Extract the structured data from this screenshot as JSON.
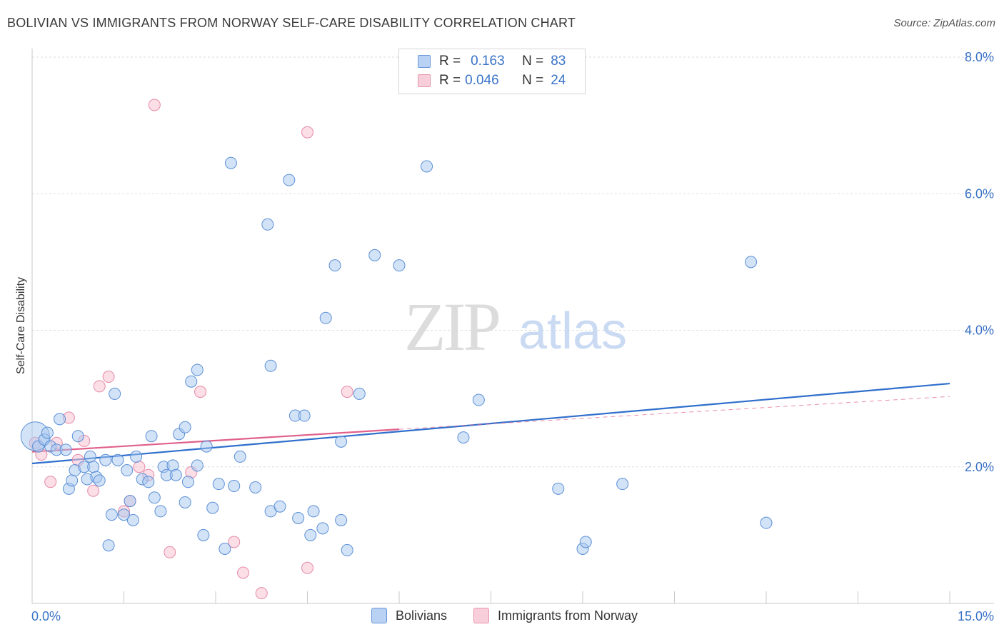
{
  "header": {
    "title": "BOLIVIAN VS IMMIGRANTS FROM NORWAY SELF-CARE DISABILITY CORRELATION CHART",
    "source": "Source: ZipAtlas.com"
  },
  "watermark": {
    "zip": "ZIP",
    "atlas": "atlas"
  },
  "legend": {
    "rows": [
      {
        "r_label": "R =",
        "r_value": "0.163",
        "n_label": "N =",
        "n_value": "83"
      },
      {
        "r_label": "R =",
        "r_value": "0.046",
        "n_label": "N =",
        "n_value": "24"
      }
    ]
  },
  "bottom_legend": {
    "bolivians": "Bolivians",
    "norway": "Immigrants from Norway"
  },
  "colors": {
    "blue_fill": "#a8c8f0",
    "blue_stroke": "#5b8fd6",
    "blue_line": "#2f6fcc",
    "pink_fill": "#f7c2d2",
    "pink_stroke": "#e68aa8",
    "pink_line": "#e0608a",
    "axis_text": "#3a73c7"
  },
  "chart_data": {
    "type": "scatter",
    "title": "BOLIVIAN VS IMMIGRANTS FROM NORWAY SELF-CARE DISABILITY CORRELATION CHART",
    "xlabel": "",
    "ylabel": "Self-Care Disability",
    "xlim": [
      0,
      15
    ],
    "ylim": [
      0,
      8.0
    ],
    "x_tick_labels": [
      "0.0%",
      "15.0%"
    ],
    "y_ticks": [
      2,
      4,
      6,
      8
    ],
    "y_tick_labels": [
      "2.0%",
      "4.0%",
      "6.0%",
      "8.0%"
    ],
    "grid": true,
    "series": [
      {
        "name": "Bolivians",
        "r": 0.163,
        "n": 83,
        "trend": {
          "x": [
            0,
            15
          ],
          "y": [
            2.05,
            3.22
          ]
        },
        "points": [
          {
            "x": 0.05,
            "y": 2.45,
            "big": true
          },
          {
            "x": 0.1,
            "y": 2.3
          },
          {
            "x": 0.2,
            "y": 2.4
          },
          {
            "x": 0.25,
            "y": 2.5
          },
          {
            "x": 0.3,
            "y": 2.3
          },
          {
            "x": 0.4,
            "y": 2.25
          },
          {
            "x": 0.45,
            "y": 2.7
          },
          {
            "x": 0.55,
            "y": 2.25
          },
          {
            "x": 0.6,
            "y": 1.68
          },
          {
            "x": 0.65,
            "y": 1.8
          },
          {
            "x": 0.7,
            "y": 1.95
          },
          {
            "x": 0.75,
            "y": 2.45
          },
          {
            "x": 0.85,
            "y": 2.0
          },
          {
            "x": 0.9,
            "y": 1.82
          },
          {
            "x": 0.95,
            "y": 2.15
          },
          {
            "x": 1.0,
            "y": 2.0
          },
          {
            "x": 1.05,
            "y": 1.85
          },
          {
            "x": 1.1,
            "y": 1.8
          },
          {
            "x": 1.2,
            "y": 2.1
          },
          {
            "x": 1.25,
            "y": 0.85
          },
          {
            "x": 1.3,
            "y": 1.3
          },
          {
            "x": 1.35,
            "y": 3.07
          },
          {
            "x": 1.4,
            "y": 2.1
          },
          {
            "x": 1.5,
            "y": 1.3
          },
          {
            "x": 1.55,
            "y": 1.95
          },
          {
            "x": 1.6,
            "y": 1.5
          },
          {
            "x": 1.65,
            "y": 1.22
          },
          {
            "x": 1.7,
            "y": 2.15
          },
          {
            "x": 1.8,
            "y": 1.82
          },
          {
            "x": 1.9,
            "y": 1.78
          },
          {
            "x": 1.95,
            "y": 2.45
          },
          {
            "x": 2.0,
            "y": 1.55
          },
          {
            "x": 2.1,
            "y": 1.35
          },
          {
            "x": 2.15,
            "y": 2.0
          },
          {
            "x": 2.2,
            "y": 1.88
          },
          {
            "x": 2.3,
            "y": 2.02
          },
          {
            "x": 2.35,
            "y": 1.88
          },
          {
            "x": 2.4,
            "y": 2.48
          },
          {
            "x": 2.5,
            "y": 1.48
          },
          {
            "x": 2.5,
            "y": 2.58
          },
          {
            "x": 2.55,
            "y": 1.78
          },
          {
            "x": 2.6,
            "y": 3.25
          },
          {
            "x": 2.7,
            "y": 3.42
          },
          {
            "x": 2.7,
            "y": 2.02
          },
          {
            "x": 2.8,
            "y": 1.0
          },
          {
            "x": 2.85,
            "y": 2.3
          },
          {
            "x": 2.95,
            "y": 1.4
          },
          {
            "x": 3.05,
            "y": 1.75
          },
          {
            "x": 3.15,
            "y": 0.8
          },
          {
            "x": 3.25,
            "y": 6.45
          },
          {
            "x": 3.3,
            "y": 1.72
          },
          {
            "x": 3.4,
            "y": 2.15
          },
          {
            "x": 3.65,
            "y": 1.7
          },
          {
            "x": 3.85,
            "y": 5.55
          },
          {
            "x": 3.9,
            "y": 3.48
          },
          {
            "x": 3.9,
            "y": 1.35
          },
          {
            "x": 4.05,
            "y": 1.42
          },
          {
            "x": 4.2,
            "y": 6.2
          },
          {
            "x": 4.3,
            "y": 2.75
          },
          {
            "x": 4.35,
            "y": 1.25
          },
          {
            "x": 4.45,
            "y": 2.75
          },
          {
            "x": 4.55,
            "y": 1.0
          },
          {
            "x": 4.6,
            "y": 1.35
          },
          {
            "x": 4.75,
            "y": 1.1
          },
          {
            "x": 4.8,
            "y": 4.18
          },
          {
            "x": 4.95,
            "y": 4.95
          },
          {
            "x": 5.05,
            "y": 2.37
          },
          {
            "x": 5.05,
            "y": 1.22
          },
          {
            "x": 5.15,
            "y": 0.78
          },
          {
            "x": 5.35,
            "y": 3.07
          },
          {
            "x": 5.6,
            "y": 5.1
          },
          {
            "x": 6.0,
            "y": 4.95
          },
          {
            "x": 6.45,
            "y": 6.4
          },
          {
            "x": 7.05,
            "y": 2.43
          },
          {
            "x": 7.3,
            "y": 2.98
          },
          {
            "x": 8.6,
            "y": 1.68
          },
          {
            "x": 9.0,
            "y": 0.8
          },
          {
            "x": 9.05,
            "y": 0.9
          },
          {
            "x": 9.65,
            "y": 1.75
          },
          {
            "x": 11.75,
            "y": 5.0
          },
          {
            "x": 12.0,
            "y": 1.18
          }
        ]
      },
      {
        "name": "Immigrants from Norway",
        "r": 0.046,
        "n": 24,
        "trend": {
          "x": [
            0,
            6.0
          ],
          "y": [
            2.22,
            2.55
          ]
        },
        "trend_dashed": {
          "x": [
            6.0,
            15
          ],
          "y": [
            2.55,
            3.03
          ]
        },
        "points": [
          {
            "x": 0.05,
            "y": 2.35
          },
          {
            "x": 0.15,
            "y": 2.18
          },
          {
            "x": 0.3,
            "y": 1.78
          },
          {
            "x": 0.4,
            "y": 2.35
          },
          {
            "x": 0.6,
            "y": 2.72
          },
          {
            "x": 0.75,
            "y": 2.1
          },
          {
            "x": 0.85,
            "y": 2.38
          },
          {
            "x": 1.0,
            "y": 1.65
          },
          {
            "x": 1.1,
            "y": 3.18
          },
          {
            "x": 1.25,
            "y": 3.32
          },
          {
            "x": 1.5,
            "y": 1.35
          },
          {
            "x": 1.6,
            "y": 1.5
          },
          {
            "x": 1.75,
            "y": 2.0
          },
          {
            "x": 1.9,
            "y": 1.88
          },
          {
            "x": 2.0,
            "y": 7.3
          },
          {
            "x": 2.25,
            "y": 0.75
          },
          {
            "x": 2.6,
            "y": 1.92
          },
          {
            "x": 2.75,
            "y": 3.1
          },
          {
            "x": 3.3,
            "y": 0.9
          },
          {
            "x": 3.45,
            "y": 0.45
          },
          {
            "x": 3.75,
            "y": 0.15
          },
          {
            "x": 4.5,
            "y": 0.52
          },
          {
            "x": 4.5,
            "y": 6.9
          },
          {
            "x": 5.15,
            "y": 3.1
          }
        ]
      }
    ]
  }
}
